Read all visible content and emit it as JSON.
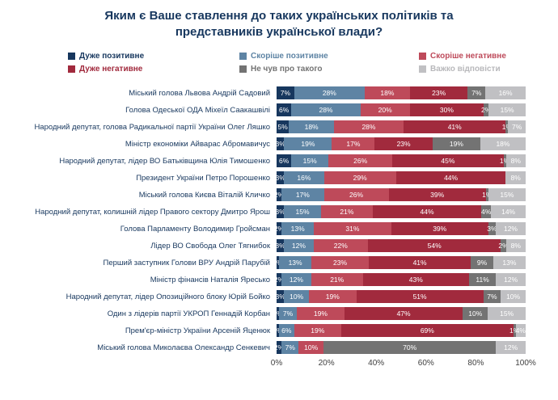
{
  "title": {
    "text": "Яким є Ваше ставлення до таких українських політиків та представників української влади?"
  },
  "legend": [
    {
      "key": "very-positive",
      "label": "Дуже позитивне",
      "color": "#17375E",
      "text_color": "#17375E"
    },
    {
      "key": "rather-positive",
      "label": "Скоріше позитивне",
      "color": "#5E84A4",
      "text_color": "#5E84A4"
    },
    {
      "key": "rather-negative",
      "label": "Скоріше негативне",
      "color": "#BE4A5A",
      "text_color": "#BE4A5A"
    },
    {
      "key": "very-negative",
      "label": "Дуже негативне",
      "color": "#A12A3D",
      "text_color": "#A12A3D"
    },
    {
      "key": "not-heard",
      "label": "Не чув про такого",
      "color": "#737373",
      "text_color": "#737373"
    },
    {
      "key": "hard-to-answer",
      "label": "Важко відповісти",
      "color": "#C0C0C3",
      "text_color": "#B8B8BB"
    }
  ],
  "chart_data": {
    "type": "bar",
    "stacked": true,
    "orientation": "horizontal",
    "title": "Яким є Ваше ставлення до таких українських політиків та представників української влади?",
    "series_names": [
      "Дуже позитивне",
      "Скоріше позитивне",
      "Скоріше негативне",
      "Дуже негативне",
      "Не чув про такого",
      "Важко відповісти"
    ],
    "x_ticks": [
      "0%",
      "20%",
      "40%",
      "60%",
      "80%",
      "100%"
    ],
    "xlim": [
      0,
      100
    ],
    "legend_position": "top",
    "grid": false,
    "rows": [
      {
        "label": "Міський голова Львова Андрій Садовий",
        "values": [
          7,
          28,
          18,
          23,
          7,
          16
        ]
      },
      {
        "label": "Голова Одеської ОДА Міхеїл Саакашвілі",
        "values": [
          6,
          28,
          20,
          30,
          2,
          15
        ]
      },
      {
        "label": "Народний депутат, голова Радикальної партії України Олег Ляшко",
        "values": [
          5,
          18,
          28,
          41,
          1,
          7
        ]
      },
      {
        "label": "Міністр економіки Айварас Абромавичус",
        "values": [
          3,
          19,
          17,
          23,
          19,
          18
        ]
      },
      {
        "label": "Народний депутат, лідер ВО Батьківщина Юлія Тимошенко",
        "values": [
          6,
          15,
          26,
          45,
          1,
          8
        ]
      },
      {
        "label": "Президент України Петро Порошенко",
        "values": [
          3,
          16,
          29,
          44,
          0,
          8
        ]
      },
      {
        "label": "Міський голова Києва Віталій Кличко",
        "values": [
          2,
          17,
          26,
          39,
          1,
          15
        ]
      },
      {
        "label": "Народний депутат, колишній лідер Правого сектору Дмитро Ярош",
        "values": [
          3,
          15,
          21,
          44,
          4,
          14
        ]
      },
      {
        "label": "Голова Парламенту Володимир Гройсман",
        "values": [
          2,
          13,
          31,
          39,
          3,
          12
        ]
      },
      {
        "label": "Лідер ВО Свобода Олег Тягнибок",
        "values": [
          3,
          12,
          22,
          54,
          2,
          8
        ]
      },
      {
        "label": "Перший заступник Голови ВРУ Андрій Парубій",
        "values": [
          1,
          13,
          23,
          41,
          9,
          13
        ]
      },
      {
        "label": "Міністр фінансів Наталія Яресько",
        "values": [
          2,
          12,
          21,
          43,
          11,
          12
        ]
      },
      {
        "label": "Народний депутат, лідер Опозиційного блоку Юрій Бойко",
        "values": [
          3,
          10,
          19,
          51,
          7,
          10
        ]
      },
      {
        "label": "Один з лідерів партії УКРОП Геннадій Корбан",
        "values": [
          1,
          7,
          19,
          47,
          10,
          15
        ]
      },
      {
        "label": "Прем'єр-міністр України Арсеній Яценюк",
        "values": [
          1,
          6,
          19,
          69,
          1,
          4
        ]
      },
      {
        "label": "Міський голова Миколаєва Олександр Сенкевич",
        "values": [
          2,
          7,
          10,
          0,
          70,
          12
        ]
      }
    ]
  }
}
